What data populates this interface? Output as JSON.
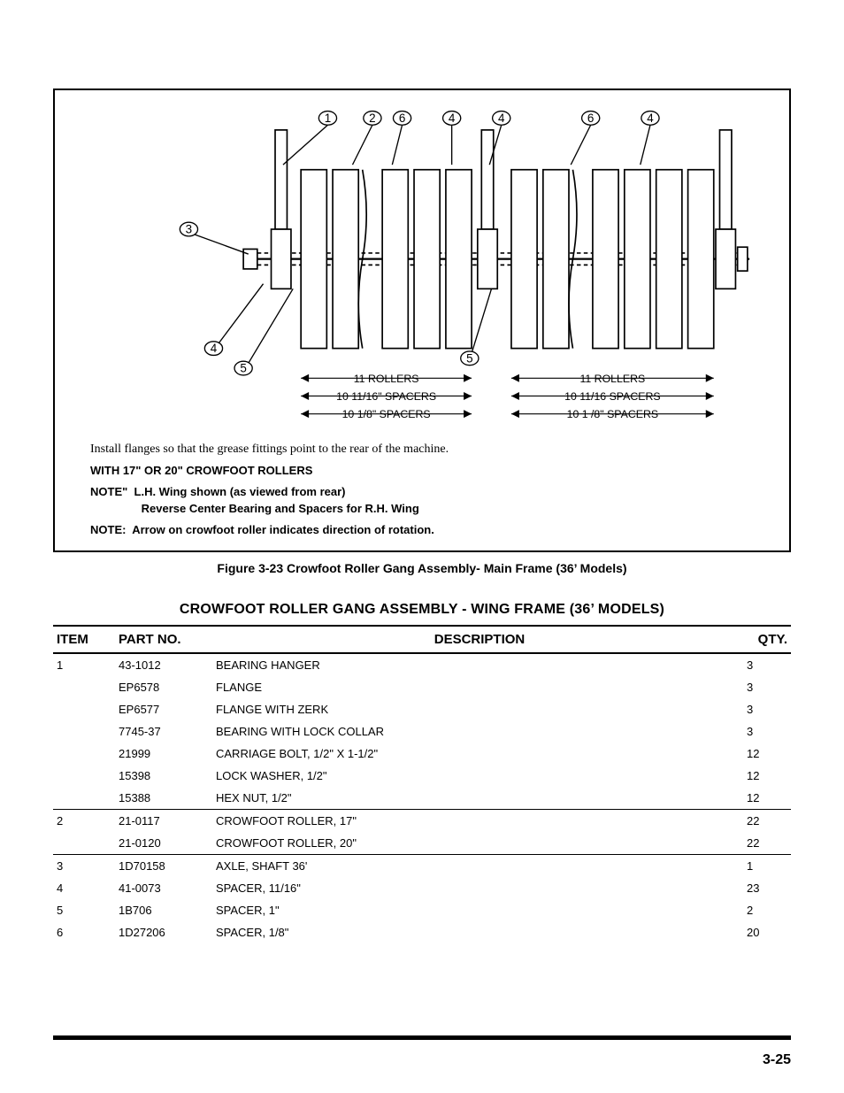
{
  "diagram": {
    "callouts": [
      "1",
      "2",
      "6",
      "4",
      "4",
      "6",
      "4",
      "3",
      "4",
      "5",
      "5"
    ],
    "left_group": {
      "rollers": "11 ROLLERS",
      "spacers_a": "10 11/16\" SPACERS",
      "spacers_b": "10 1/8\" SPACERS"
    },
    "right_group": {
      "rollers": "11 ROLLERS",
      "spacers_a": "10 11/16 SPACERS",
      "spacers_b": "10 1 /8\" SPACERS"
    }
  },
  "notes": {
    "install": "Install flanges so that the grease fittings point to the rear of the machine.",
    "with_heading": "WITH 17\" OR 20\" CROWFOOT ROLLERS",
    "note1_label": "NOTE\"",
    "note1_line1": "L.H. Wing shown (as viewed from rear)",
    "note1_line2": "Reverse Center Bearing and Spacers for R.H. Wing",
    "note2_label": "NOTE:",
    "note2_text": "Arrow on crowfoot roller indicates direction of rotation."
  },
  "caption": "Figure 3-23 Crowfoot Roller Gang Assembly- Main Frame (36’ Models)",
  "title": "CROWFOOT ROLLER GANG ASSEMBLY - WING FRAME (36’ MODELS)",
  "headers": {
    "item": "ITEM",
    "part": "PART NO.",
    "desc": "DESCRIPTION",
    "qty": "QTY."
  },
  "rows": [
    {
      "item": "1",
      "part": "43-1012",
      "desc": "BEARING HANGER",
      "qty": "3",
      "sep": false
    },
    {
      "item": "",
      "part": "EP6578",
      "desc": "FLANGE",
      "qty": "3",
      "sep": false
    },
    {
      "item": "",
      "part": "EP6577",
      "desc": "FLANGE WITH ZERK",
      "qty": "3",
      "sep": false
    },
    {
      "item": "",
      "part": "7745-37",
      "desc": "BEARING WITH LOCK COLLAR",
      "qty": "3",
      "sep": false
    },
    {
      "item": "",
      "part": "21999",
      "desc": "CARRIAGE BOLT, 1/2\" X 1-1/2\"",
      "qty": "12",
      "sep": false
    },
    {
      "item": "",
      "part": "15398",
      "desc": "LOCK WASHER, 1/2\"",
      "qty": "12",
      "sep": false
    },
    {
      "item": "",
      "part": "15388",
      "desc": "HEX NUT, 1/2\"",
      "qty": "12",
      "sep": true
    },
    {
      "item": "2",
      "part": "21-0117",
      "desc": "CROWFOOT ROLLER, 17\"",
      "qty": "22",
      "sep": false
    },
    {
      "item": "",
      "part": "21-0120",
      "desc": "CROWFOOT ROLLER, 20\"",
      "qty": "22",
      "sep": true
    },
    {
      "item": "3",
      "part": "1D70158",
      "desc": "AXLE, SHAFT 36'",
      "qty": "1",
      "sep": false
    },
    {
      "item": "4",
      "part": "41-0073",
      "desc": "SPACER, 11/16\"",
      "qty": "23",
      "sep": false
    },
    {
      "item": "5",
      "part": "1B706",
      "desc": "SPACER, 1\"",
      "qty": "2",
      "sep": false
    },
    {
      "item": "6",
      "part": "1D27206",
      "desc": "SPACER, 1/8\"",
      "qty": "20",
      "sep": false
    }
  ],
  "page_number": "3-25"
}
